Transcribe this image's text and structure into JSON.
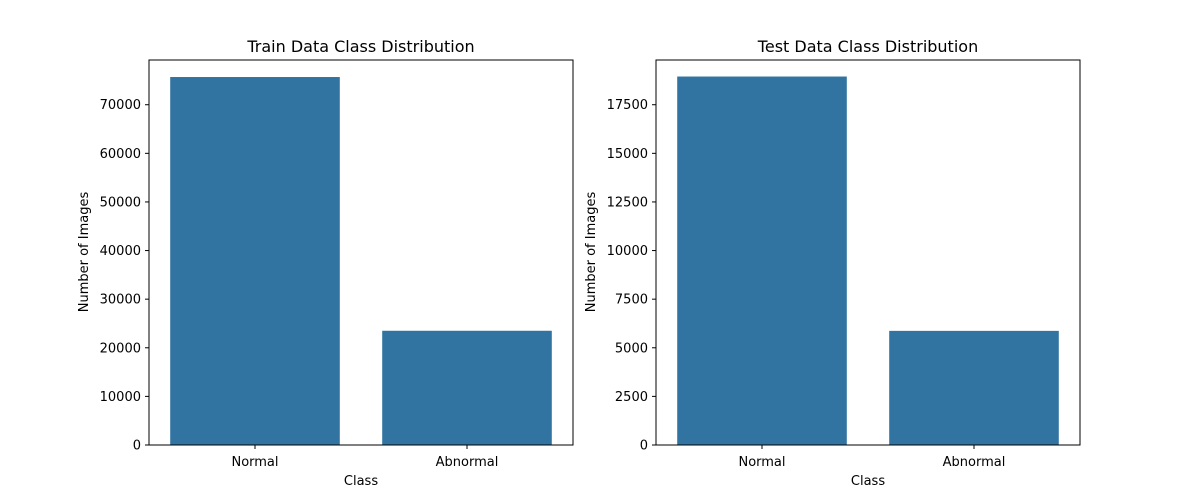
{
  "chart_data": [
    {
      "type": "bar",
      "title": "Train Data Class Distribution",
      "xlabel": "Class",
      "ylabel": "Number of Images",
      "categories": [
        "Normal",
        "Abnormal"
      ],
      "values": [
        75700,
        23500
      ],
      "ylim": [
        0,
        79200
      ],
      "yticks": [
        0,
        10000,
        20000,
        30000,
        40000,
        50000,
        60000,
        70000
      ],
      "grid": false,
      "bar_color": "#3274a1"
    },
    {
      "type": "bar",
      "title": "Test Data Class Distribution",
      "xlabel": "Class",
      "ylabel": "Number of Images",
      "categories": [
        "Normal",
        "Abnormal"
      ],
      "values": [
        18950,
        5870
      ],
      "ylim": [
        0,
        19800
      ],
      "yticks": [
        0,
        2500,
        5000,
        7500,
        10000,
        12500,
        15000,
        17500
      ],
      "grid": false,
      "bar_color": "#3274a1"
    }
  ]
}
